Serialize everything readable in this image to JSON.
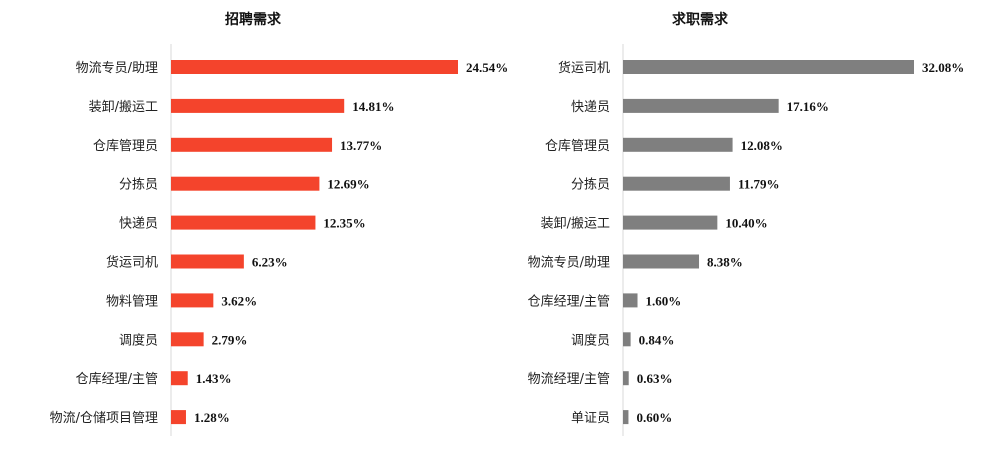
{
  "chart_data": [
    {
      "type": "bar",
      "orientation": "horizontal",
      "title": "招聘需求",
      "color": "#F4442C",
      "categories": [
        "物流专员/助理",
        "装卸/搬运工",
        "仓库管理员",
        "分拣员",
        "快递员",
        "货运司机",
        "物料管理",
        "调度员",
        "仓库经理/主管",
        "物流/仓储项目管理"
      ],
      "values": [
        24.54,
        14.81,
        13.77,
        12.69,
        12.35,
        6.23,
        3.62,
        2.79,
        1.43,
        1.28
      ],
      "labels": [
        "24.54%",
        "14.81%",
        "13.77%",
        "12.69%",
        "12.35%",
        "6.23%",
        "3.62%",
        "2.79%",
        "1.43%",
        "1.28%"
      ],
      "xlim": [
        0,
        24.54
      ],
      "grid": false,
      "legend": "none"
    },
    {
      "type": "bar",
      "orientation": "horizontal",
      "title": "求职需求",
      "color": "#7F7F7F",
      "categories": [
        "货运司机",
        "快递员",
        "仓库管理员",
        "分拣员",
        "装卸/搬运工",
        "物流专员/助理",
        "仓库经理/主管",
        "调度员",
        "物流经理/主管",
        "单证员"
      ],
      "values": [
        32.08,
        17.16,
        12.08,
        11.79,
        10.4,
        8.38,
        1.6,
        0.84,
        0.63,
        0.6
      ],
      "labels": [
        "32.08%",
        "17.16%",
        "12.08%",
        "11.79%",
        "10.40%",
        "8.38%",
        "1.60%",
        "0.84%",
        "0.63%",
        "0.60%"
      ],
      "xlim": [
        0,
        32.08
      ],
      "grid": false,
      "legend": "none"
    }
  ]
}
